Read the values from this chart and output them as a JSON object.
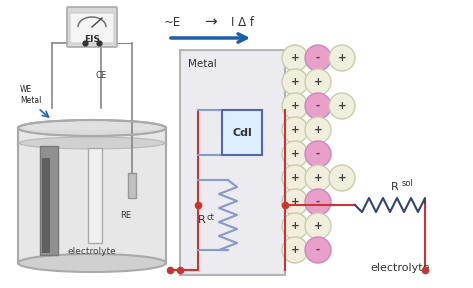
{
  "bg_color": "#ffffff",
  "arrow_color": "#1a5fa8",
  "metal_label": "Metal",
  "cdl_label": "Cdl",
  "rct_label": "R",
  "rct_sub": "ct",
  "rsol_label": "R",
  "rsol_sub": "sol",
  "electrolyte_label": "electrolyte",
  "eis_label": "EIS",
  "we_label": "WE\nMetal",
  "ce_label": "CE",
  "re_label": "RE",
  "elec_label2": "electrolyte",
  "plus_color": "#f0eedc",
  "minus_color": "#e8a0c8",
  "plus_ec": "#ccccaa",
  "minus_ec": "#cc88bb",
  "wire_red": "#cc3333",
  "wire_blue": "#8899cc",
  "wire_gray": "#888888",
  "resistor_color": "#445588",
  "ion_data": [
    [
      295,
      58,
      false,
      "+"
    ],
    [
      318,
      58,
      true,
      "-"
    ],
    [
      342,
      58,
      false,
      "+"
    ],
    [
      295,
      82,
      false,
      "+"
    ],
    [
      318,
      82,
      false,
      "+"
    ],
    [
      295,
      106,
      false,
      "+"
    ],
    [
      318,
      106,
      true,
      "-"
    ],
    [
      342,
      106,
      false,
      "+"
    ],
    [
      295,
      130,
      false,
      "+"
    ],
    [
      318,
      130,
      false,
      "+"
    ],
    [
      295,
      154,
      false,
      "+"
    ],
    [
      318,
      154,
      true,
      "-"
    ],
    [
      295,
      178,
      false,
      "+"
    ],
    [
      318,
      178,
      false,
      "+"
    ],
    [
      342,
      178,
      false,
      "+"
    ],
    [
      295,
      202,
      false,
      "+"
    ],
    [
      318,
      202,
      true,
      "-"
    ],
    [
      295,
      226,
      false,
      "+"
    ],
    [
      318,
      226,
      false,
      "+"
    ],
    [
      295,
      250,
      false,
      "+"
    ],
    [
      318,
      250,
      true,
      "-"
    ]
  ]
}
